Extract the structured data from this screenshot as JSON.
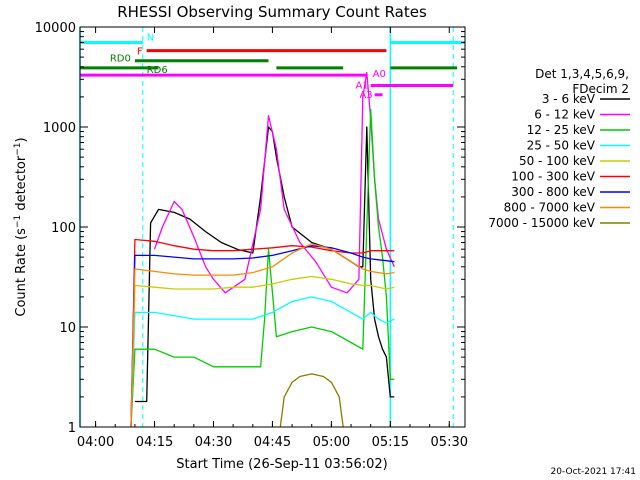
{
  "chart_data": {
    "type": "line",
    "title": "RHESSI Observing Summary Count Rates",
    "xlabel": "Start Time (26-Sep-11 03:56:02)",
    "ylabel": "Count Rate (s⁻¹ detector⁻¹)",
    "ylabel_main": "Count Rate (s",
    "ylabel_sup": "−1",
    "ylabel_tail": " detector",
    "ylabel_sup2": "−1",
    "ylabel_end": ")",
    "y_scale": "log",
    "xlim": [
      "03:56:02",
      "05:34:00"
    ],
    "ylim": [
      1,
      10000
    ],
    "x_ticks": [
      "04:00",
      "04:15",
      "04:30",
      "04:45",
      "05:00",
      "05:15",
      "05:30"
    ],
    "y_ticks": [
      "1",
      "10",
      "100",
      "1000",
      "10000"
    ],
    "legend_header": [
      "Det 1,3,4,5,6,9,",
      "FDecim 2"
    ],
    "legend_placement": "right",
    "footer_date": "20-Oct-2021 17:41",
    "series": [
      {
        "name": "3 - 6 keV",
        "color": "#000000",
        "x": [
          "04:10:00",
          "04:12:00",
          "04:13:00",
          "04:14:00",
          "04:16:00",
          "04:20:00",
          "04:24:00",
          "04:28:00",
          "04:32:00",
          "04:36:00",
          "04:40:00",
          "04:42:00",
          "04:44:00",
          "04:45:00",
          "04:46:00",
          "04:48:00",
          "04:50:00",
          "04:55:00",
          "05:00:00",
          "05:05:00",
          "05:07:00",
          "05:08:00",
          "05:09:00",
          "05:10:00",
          "05:11:00",
          "05:12:00",
          "05:13:00",
          "05:14:00",
          "05:15:00",
          "05:16:00"
        ],
        "y": [
          1.8,
          1.8,
          1.8,
          110,
          150,
          140,
          120,
          90,
          70,
          60,
          55,
          200,
          1000,
          900,
          500,
          200,
          100,
          70,
          60,
          45,
          40,
          40,
          1000,
          30,
          12,
          8,
          6,
          5,
          2,
          2
        ]
      },
      {
        "name": "6 - 12 keV",
        "color": "#ff00ff",
        "x": [
          "04:15:00",
          "04:17:00",
          "04:20:00",
          "04:22:00",
          "04:25:00",
          "04:28:00",
          "04:30:00",
          "04:33:00",
          "04:38:00",
          "04:42:00",
          "04:44:00",
          "04:46:00",
          "04:48:00",
          "04:52:00",
          "04:56:00",
          "05:00:00",
          "05:04:00",
          "05:07:00",
          "05:08:00",
          "05:09:00",
          "05:10:00",
          "05:11:00",
          "05:12:00",
          "05:14:00",
          "05:16:00"
        ],
        "y": [
          60,
          100,
          180,
          150,
          80,
          40,
          30,
          22,
          30,
          150,
          1300,
          600,
          150,
          70,
          45,
          25,
          22,
          30,
          2000,
          3500,
          1200,
          300,
          120,
          60,
          40
        ]
      },
      {
        "name": "12 - 25 keV",
        "color": "#00cc00",
        "x": [
          "04:09:00",
          "04:10:00",
          "04:15:00",
          "04:20:00",
          "04:25:00",
          "04:30:00",
          "04:35:00",
          "04:40:00",
          "04:42:00",
          "04:43:00",
          "04:44:00",
          "04:46:00",
          "04:50:00",
          "04:55:00",
          "05:00:00",
          "05:05:00",
          "05:08:00",
          "05:09:00",
          "05:10:00",
          "05:11:00",
          "05:12:00",
          "05:13:00",
          "05:14:00",
          "05:15:00",
          "05:16:00"
        ],
        "y": [
          1,
          6,
          6,
          5,
          5,
          4,
          4,
          4,
          4,
          12,
          60,
          8,
          9,
          10,
          9,
          7,
          6,
          100,
          1500,
          300,
          100,
          50,
          20,
          3,
          3
        ]
      },
      {
        "name": "25 - 50 keV",
        "color": "#00ffff",
        "x": [
          "04:09:00",
          "04:10:00",
          "04:15:00",
          "04:20:00",
          "04:25:00",
          "04:30:00",
          "04:35:00",
          "04:40:00",
          "04:45:00",
          "04:50:00",
          "04:55:00",
          "05:00:00",
          "05:05:00",
          "05:08:00",
          "05:10:00",
          "05:12:00",
          "05:14:00",
          "05:16:00"
        ],
        "y": [
          1,
          14,
          14,
          13,
          12,
          12,
          12,
          12,
          14,
          18,
          20,
          18,
          14,
          12,
          14,
          12,
          11,
          12
        ]
      },
      {
        "name": "50 - 100 keV",
        "color": "#cccc00",
        "x": [
          "04:09:00",
          "04:10:00",
          "04:15:00",
          "04:20:00",
          "04:25:00",
          "04:30:00",
          "04:35:00",
          "04:40:00",
          "04:45:00",
          "04:50:00",
          "04:55:00",
          "05:00:00",
          "05:05:00",
          "05:08:00",
          "05:10:00",
          "05:12:00",
          "05:14:00",
          "05:16:00"
        ],
        "y": [
          1,
          26,
          25,
          24,
          24,
          24,
          25,
          25,
          27,
          30,
          32,
          30,
          27,
          26,
          26,
          25,
          24,
          25
        ]
      },
      {
        "name": "100 - 300 keV",
        "color": "#ff0000",
        "x": [
          "04:09:00",
          "04:10:00",
          "04:15:00",
          "04:20:00",
          "04:25:00",
          "04:30:00",
          "04:35:00",
          "04:40:00",
          "04:45:00",
          "04:50:00",
          "04:55:00",
          "05:00:00",
          "05:05:00",
          "05:08:00",
          "05:10:00",
          "05:12:00",
          "05:14:00",
          "05:16:00"
        ],
        "y": [
          1,
          75,
          72,
          65,
          60,
          58,
          58,
          60,
          62,
          65,
          63,
          58,
          55,
          55,
          58,
          58,
          58,
          58
        ]
      },
      {
        "name": "300 - 800 keV",
        "color": "#0000ff",
        "x": [
          "04:09:00",
          "04:10:00",
          "04:15:00",
          "04:20:00",
          "04:25:00",
          "04:30:00",
          "04:35:00",
          "04:40:00",
          "04:45:00",
          "04:50:00",
          "04:55:00",
          "05:00:00",
          "05:05:00",
          "05:08:00",
          "05:10:00",
          "05:12:00",
          "05:14:00",
          "05:16:00"
        ],
        "y": [
          1,
          52,
          52,
          50,
          48,
          48,
          48,
          49,
          52,
          58,
          65,
          62,
          55,
          50,
          48,
          47,
          46,
          45
        ]
      },
      {
        "name": "800 - 7000 keV",
        "color": "#ff8800",
        "x": [
          "04:09:00",
          "04:10:00",
          "04:15:00",
          "04:20:00",
          "04:25:00",
          "04:30:00",
          "04:35:00",
          "04:40:00",
          "04:45:00",
          "04:50:00",
          "04:55:00",
          "05:00:00",
          "05:05:00",
          "05:08:00",
          "05:10:00",
          "05:12:00",
          "05:14:00",
          "05:16:00"
        ],
        "y": [
          1,
          38,
          36,
          34,
          33,
          33,
          33,
          35,
          40,
          55,
          68,
          60,
          45,
          38,
          36,
          35,
          34,
          35
        ]
      },
      {
        "name": "7000 - 15000 keV",
        "color": "#808000",
        "x": [
          "04:47:00",
          "04:48:00",
          "04:50:00",
          "04:52:00",
          "04:55:00",
          "04:58:00",
          "05:00:00",
          "05:02:00",
          "05:03:00"
        ],
        "y": [
          1,
          2,
          2.8,
          3.2,
          3.4,
          3.2,
          2.8,
          2,
          1
        ]
      }
    ],
    "flag_bars": [
      {
        "label": "N",
        "color": "#00ffff",
        "y": 7000,
        "segments": [
          [
            "03:56:02",
            "04:12:00"
          ],
          [
            "05:15:00",
            "05:34:00"
          ]
        ]
      },
      {
        "label": "F",
        "color": "#ff0000",
        "y": 5800,
        "segments": [
          [
            "04:13:00",
            "05:14:00"
          ]
        ]
      },
      {
        "label": "RD0",
        "color": "#008000",
        "y": 4600,
        "segments": [
          [
            "04:10:00",
            "04:44:00"
          ]
        ]
      },
      {
        "label": "RD6",
        "color": "#008000",
        "y": 3900,
        "segments": [
          [
            "03:56:02",
            "04:16:00"
          ],
          [
            "04:46:00",
            "05:03:00"
          ],
          [
            "05:15:00",
            "05:32:00"
          ]
        ]
      },
      {
        "label": "A0",
        "color": "#ff00ff",
        "y": 3300,
        "segments": [
          [
            "03:56:02",
            "05:09:00"
          ]
        ]
      },
      {
        "label": "A1",
        "color": "#ff00ff",
        "y": 2600,
        "segments": [
          [
            "05:10:00",
            "05:31:00"
          ]
        ]
      },
      {
        "label": "A3",
        "color": "#ff00ff",
        "y": 2100,
        "segments": [
          [
            "05:11:00",
            "05:13:00"
          ]
        ]
      }
    ],
    "vlines": {
      "solid": [
        "03:56:02",
        "05:15:00"
      ],
      "dashed": [
        "04:12:00",
        "05:31:00"
      ],
      "color": "#00ffff"
    }
  }
}
